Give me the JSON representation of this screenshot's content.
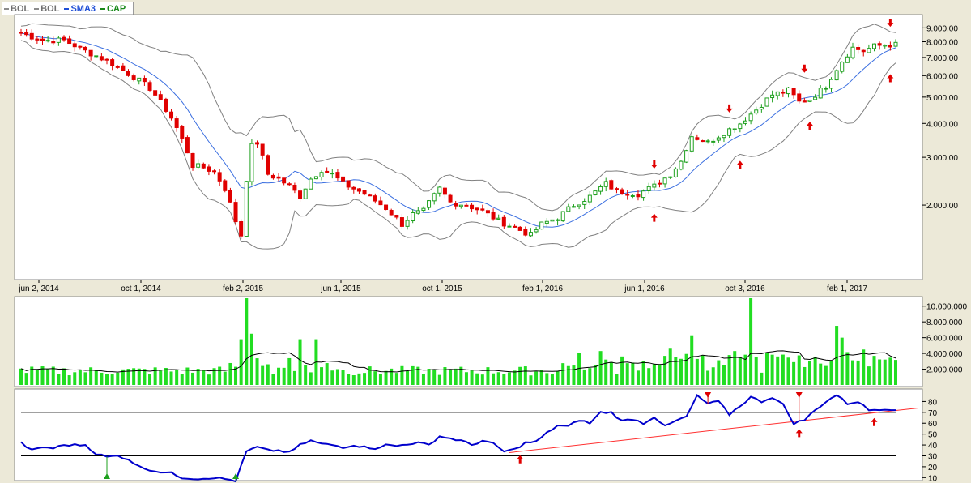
{
  "legend": [
    {
      "label": "BOL",
      "color": "#8c8c8c"
    },
    {
      "label": "BOL",
      "color": "#8c8c8c"
    },
    {
      "label": "SMA3",
      "color": "#1f4fd6"
    },
    {
      "label": "CAP",
      "color": "#1a8a1a"
    }
  ],
  "colors": {
    "up": "#1ea01e",
    "down": "#e00000",
    "band": "#808080",
    "sma": "#3b6fe0",
    "volume": "#22dd22",
    "volume_avg": "#000000",
    "rsi": "#0000cc",
    "trend": "#ff3030",
    "signal_buy": "#e00000",
    "panel_bg": "#ffffff",
    "frame": "#ece9d8"
  },
  "chart_data": [
    {
      "type": "candlestick",
      "title": "",
      "scale": "log",
      "x_tick_labels": [
        "jun 2, 2014",
        "oct 1, 2014",
        "feb 2, 2015",
        "jun 1, 2015",
        "oct 1, 2015",
        "feb 1, 2016",
        "jun 1, 2016",
        "oct 3, 2016",
        "feb 1, 2017"
      ],
      "y_tick_labels": [
        "9.000,00",
        "8.000,00",
        "7.000,00",
        "6.000,00",
        "5.000,00",
        "4.000,00",
        "3.000,00",
        "2.000,00"
      ],
      "y_tick_values": [
        9000,
        8000,
        7000,
        6000,
        5000,
        4000,
        3000,
        2000
      ],
      "ylim": [
        1100,
        9800
      ],
      "x_anchors": [
        [
          0,
          8600
        ],
        [
          4,
          8100
        ],
        [
          8,
          8100
        ],
        [
          12,
          7400
        ],
        [
          16,
          6800
        ],
        [
          20,
          6100
        ],
        [
          24,
          5400
        ],
        [
          28,
          4200
        ],
        [
          32,
          2800
        ],
        [
          34,
          2750
        ],
        [
          36,
          2650
        ],
        [
          38,
          2300
        ],
        [
          40,
          1750
        ],
        [
          41,
          1550
        ],
        [
          42,
          2500
        ],
        [
          43,
          3300
        ],
        [
          44,
          3400
        ],
        [
          46,
          2600
        ],
        [
          48,
          2500
        ],
        [
          50,
          2350
        ],
        [
          52,
          2150
        ],
        [
          54,
          2500
        ],
        [
          56,
          2700
        ],
        [
          58,
          2600
        ],
        [
          60,
          2400
        ],
        [
          64,
          2200
        ],
        [
          68,
          1950
        ],
        [
          71,
          1700
        ],
        [
          73,
          1850
        ],
        [
          75,
          1900
        ],
        [
          78,
          2300
        ],
        [
          80,
          2050
        ],
        [
          83,
          2000
        ],
        [
          86,
          1900
        ],
        [
          89,
          1750
        ],
        [
          92,
          1650
        ],
        [
          95,
          1550
        ],
        [
          97,
          1700
        ],
        [
          100,
          1800
        ],
        [
          103,
          2000
        ],
        [
          106,
          2150
        ],
        [
          109,
          2400
        ],
        [
          111,
          2250
        ],
        [
          115,
          2200
        ],
        [
          118,
          2350
        ],
        [
          121,
          2600
        ],
        [
          123,
          2900
        ],
        [
          125,
          3600
        ],
        [
          128,
          3400
        ],
        [
          131,
          3700
        ],
        [
          134,
          4000
        ],
        [
          137,
          4500
        ],
        [
          140,
          5100
        ],
        [
          143,
          5300
        ],
        [
          145,
          4800
        ],
        [
          147,
          4900
        ],
        [
          150,
          5500
        ],
        [
          153,
          6800
        ],
        [
          155,
          7600
        ],
        [
          157,
          7400
        ],
        [
          159,
          7700
        ],
        [
          161,
          7800
        ]
      ],
      "sma3_label": "SMA3",
      "bollinger_label": "BOL",
      "signals_up": [
        118,
        134,
        147,
        162
      ],
      "signals_down": [
        118,
        132,
        146,
        162
      ]
    },
    {
      "type": "bar",
      "title": "",
      "y_tick_labels": [
        "10.000.000",
        "8.000.000",
        "6.000.000",
        "4.000.000",
        "2.000.000"
      ],
      "y_tick_values": [
        10000000,
        8000000,
        6000000,
        4000000,
        2000000
      ],
      "ylim": [
        0,
        11000000
      ],
      "series_name": "CAP",
      "spikes": [
        [
          42,
          11000000
        ],
        [
          41,
          5800000
        ],
        [
          43,
          6500000
        ],
        [
          52,
          5800000
        ],
        [
          55,
          5800000
        ],
        [
          136,
          11000000
        ],
        [
          125,
          6300000
        ],
        [
          121,
          4600000
        ],
        [
          152,
          7500000
        ],
        [
          153,
          6000000
        ],
        [
          104,
          4100000
        ],
        [
          108,
          4300000
        ],
        [
          133,
          4300000
        ]
      ]
    },
    {
      "type": "line",
      "title": "",
      "y_tick_labels": [
        "80",
        "70",
        "60",
        "50",
        "40",
        "30",
        "20",
        "10"
      ],
      "y_tick_values": [
        80,
        70,
        60,
        50,
        40,
        30,
        20,
        10
      ],
      "ylim": [
        8,
        90
      ],
      "hlines": [
        70,
        30
      ],
      "trendline": [
        [
          91,
          33
        ],
        [
          164,
          74
        ]
      ],
      "rsi_anchors": [
        [
          0,
          42
        ],
        [
          2,
          35
        ],
        [
          4,
          38
        ],
        [
          6,
          37
        ],
        [
          8,
          40
        ],
        [
          12,
          40
        ],
        [
          14,
          32
        ],
        [
          16,
          29
        ],
        [
          18,
          30
        ],
        [
          20,
          27
        ],
        [
          22,
          20
        ],
        [
          25,
          16
        ],
        [
          28,
          14
        ],
        [
          30,
          10
        ],
        [
          33,
          9
        ],
        [
          36,
          10
        ],
        [
          39,
          8
        ],
        [
          40,
          7
        ],
        [
          42,
          34
        ],
        [
          44,
          38
        ],
        [
          46,
          35
        ],
        [
          48,
          35
        ],
        [
          50,
          33
        ],
        [
          52,
          40
        ],
        [
          54,
          44
        ],
        [
          56,
          41
        ],
        [
          58,
          40
        ],
        [
          60,
          38
        ],
        [
          62,
          40
        ],
        [
          64,
          38
        ],
        [
          66,
          37
        ],
        [
          68,
          40
        ],
        [
          70,
          39
        ],
        [
          72,
          41
        ],
        [
          74,
          42
        ],
        [
          76,
          40
        ],
        [
          78,
          48
        ],
        [
          80,
          46
        ],
        [
          82,
          44
        ],
        [
          84,
          40
        ],
        [
          86,
          44
        ],
        [
          88,
          41
        ],
        [
          90,
          34
        ],
        [
          92,
          36
        ],
        [
          94,
          42
        ],
        [
          96,
          43
        ],
        [
          98,
          51
        ],
        [
          100,
          58
        ],
        [
          102,
          57
        ],
        [
          104,
          63
        ],
        [
          106,
          60
        ],
        [
          108,
          70
        ],
        [
          110,
          70
        ],
        [
          112,
          62
        ],
        [
          114,
          64
        ],
        [
          116,
          60
        ],
        [
          118,
          66
        ],
        [
          120,
          57
        ],
        [
          122,
          62
        ],
        [
          124,
          66
        ],
        [
          126,
          85
        ],
        [
          128,
          78
        ],
        [
          130,
          80
        ],
        [
          132,
          68
        ],
        [
          134,
          76
        ],
        [
          136,
          84
        ],
        [
          138,
          80
        ],
        [
          140,
          84
        ],
        [
          142,
          77
        ],
        [
          144,
          60
        ],
        [
          146,
          63
        ],
        [
          148,
          72
        ],
        [
          150,
          80
        ],
        [
          152,
          86
        ],
        [
          154,
          78
        ],
        [
          156,
          80
        ],
        [
          158,
          72
        ],
        [
          160,
          73
        ],
        [
          161,
          73
        ]
      ],
      "buy_markers": [
        16,
        40
      ],
      "sell_markers": [
        128,
        145
      ],
      "up_arrows": [
        93,
        145,
        159
      ]
    }
  ]
}
